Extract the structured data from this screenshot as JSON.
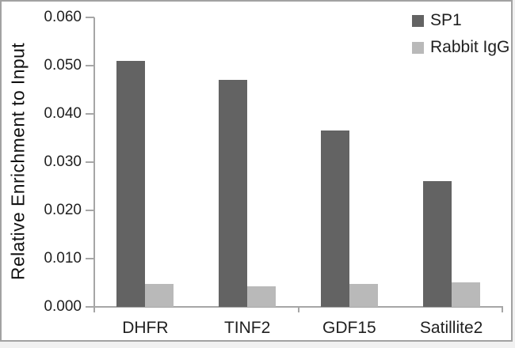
{
  "colors": {
    "sp1_bar": "#636363",
    "igg_bar": "#b9b9b9",
    "axis": "#a6a6a6",
    "text": "#1f1f1f",
    "frame": "#a2a2a2"
  },
  "chart_data": {
    "type": "bar",
    "title": "",
    "xlabel": "",
    "ylabel": "Relative Enrichment to Input",
    "categories": [
      "DHFR",
      "TINF2",
      "GDF15",
      "Satillite2"
    ],
    "series": [
      {
        "name": "SP1",
        "color": "#636363",
        "values": [
          0.051,
          0.047,
          0.0365,
          0.026
        ]
      },
      {
        "name": "Rabbit IgG",
        "color": "#b9b9b9",
        "values": [
          0.0047,
          0.0042,
          0.0048,
          0.0051
        ]
      }
    ],
    "ylim": [
      0,
      0.06
    ],
    "ytick_step": 0.01,
    "ytick_labels": [
      "0.000",
      "0.010",
      "0.020",
      "0.030",
      "0.040",
      "0.050",
      "0.060"
    ],
    "grid": false,
    "legend_position": "top-right"
  }
}
